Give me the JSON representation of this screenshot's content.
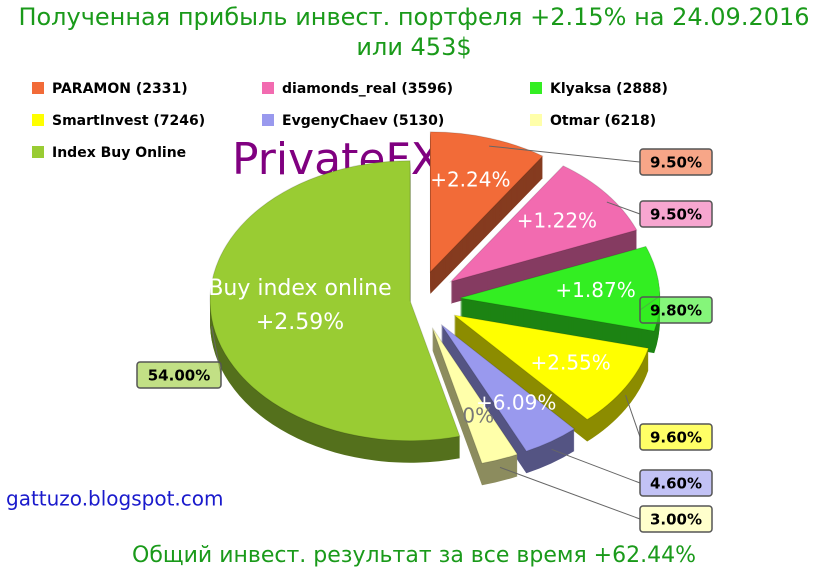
{
  "chart_data": {
    "type": "pie",
    "title": "Полученная прибыль инвест. портфеля +2.15% на 24.09.2016 или 453$",
    "categories": [
      "PARAMON (2331)",
      "diamonds_real (3596)",
      "Klyaksa (2888)",
      "SmartInvest (7246)",
      "EvgenyChaev (5130)",
      "Otmar (6218)",
      "Index Buy Online"
    ],
    "values": [
      9.5,
      9.5,
      9.8,
      9.6,
      4.6,
      3.0,
      54.0
    ],
    "value_labels": [
      "9.50%",
      "9.50%",
      "9.80%",
      "9.60%",
      "4.60%",
      "3.00%",
      "54.00%"
    ],
    "slice_labels": [
      "+2.24%",
      "+1.22%",
      "+1.87%",
      "+2.55%",
      "+6.09%",
      "0%",
      "Buy index online +2.59%"
    ],
    "colors": [
      "#f26b38",
      "#f26bb0",
      "#33ee22",
      "#ffff00",
      "#9999ee",
      "#ffffaa",
      "#99cc33"
    ],
    "watermark": "PrivateFX",
    "source": "gattuzo.blogspot.com",
    "footer": "Общий инвест. результат за все время +62.44%"
  }
}
